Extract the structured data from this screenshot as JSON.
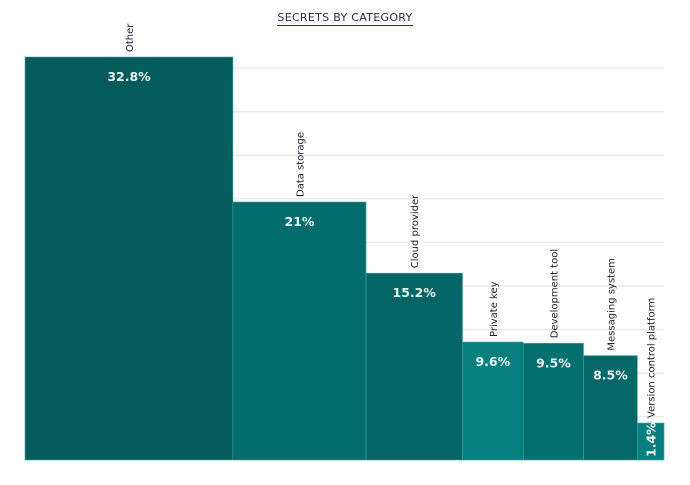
{
  "chart_data": {
    "type": "bar",
    "title": "SECRETS BY CATEGORY",
    "xlabel": "",
    "ylabel": "",
    "ylim": [
      0,
      32.8
    ],
    "grid": true,
    "legend": "none",
    "categories": [
      "Other",
      "Data storage",
      "Cloud provider",
      "Private key",
      "Development tool",
      "Messaging system",
      "Version control platform"
    ],
    "values": [
      32.8,
      21,
      15.2,
      9.6,
      9.5,
      8.5,
      1.4
    ],
    "value_labels": [
      "32.8%",
      "21%",
      "15.2%",
      "9.6%",
      "9.5%",
      "8.5%",
      "1.4%"
    ],
    "bar_widths_relative": [
      32.8,
      21,
      15.2,
      9.6,
      9.5,
      8.5,
      4.2
    ],
    "colors": [
      "#035b5b",
      "#026b6b",
      "#036565",
      "#077f7f",
      "#046f6f",
      "#046868",
      "#077f7f"
    ],
    "grid_color": "#e9ebee",
    "label_color": "#1c1f2e"
  }
}
